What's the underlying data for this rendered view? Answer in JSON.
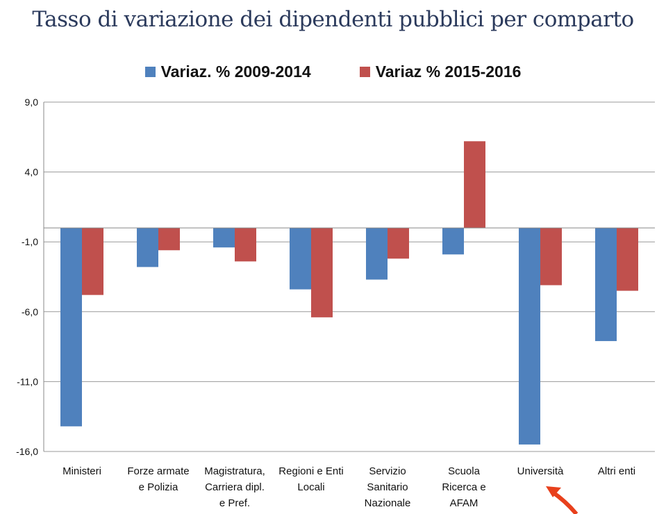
{
  "chart_data": {
    "type": "bar",
    "title": "Tasso di variazione dei dipendenti pubblici per comparto",
    "categories": [
      "Ministeri",
      "Forze armate e Polizia",
      "Magistratura, Carriera dipl. e Pref.",
      "Regioni e Enti Locali",
      "Servizio Sanitario Nazionale",
      "Scuola Ricerca e AFAM",
      "Università",
      "Altri enti"
    ],
    "category_lines": [
      [
        "Ministeri"
      ],
      [
        "Forze armate",
        "e Polizia"
      ],
      [
        "Magistratura,",
        "Carriera dipl.",
        "e Pref."
      ],
      [
        "Regioni e Enti",
        "Locali"
      ],
      [
        "Servizio",
        "Sanitario",
        "Nazionale"
      ],
      [
        "Scuola",
        "Ricerca e",
        "AFAM"
      ],
      [
        "Università"
      ],
      [
        "Altri enti"
      ]
    ],
    "series": [
      {
        "name": "Variaz. % 2009-2014",
        "color": "#4f81bd",
        "values": [
          -14.2,
          -2.8,
          -1.4,
          -4.4,
          -3.7,
          -1.9,
          -15.5,
          -8.1
        ]
      },
      {
        "name": "Variaz % 2015-2016",
        "color": "#c0504d",
        "values": [
          -4.8,
          -1.6,
          -2.4,
          -6.4,
          -2.2,
          6.2,
          -4.1,
          -4.5
        ]
      }
    ],
    "ylim": [
      -16,
      9
    ],
    "yticks": [
      9,
      4,
      -1,
      -6,
      -11,
      -16
    ],
    "ytick_labels": [
      "9,0",
      "4,0",
      "-1,0",
      "-6,0",
      "-11,0",
      "-16,0"
    ],
    "grid": true,
    "legend_position": "top",
    "annotation": {
      "type": "arrow",
      "color": "#e8401c",
      "points_to": "Università"
    }
  }
}
